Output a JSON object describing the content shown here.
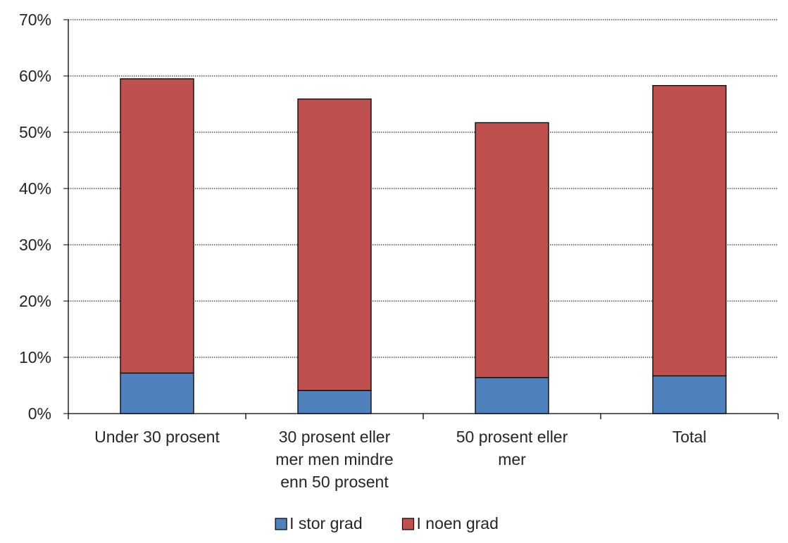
{
  "chart_data": {
    "type": "bar",
    "stacked": true,
    "title": "",
    "xlabel": "",
    "ylabel": "",
    "ylim": [
      0,
      70
    ],
    "yticks": [
      "0%",
      "10%",
      "20%",
      "30%",
      "40%",
      "50%",
      "60%",
      "70%"
    ],
    "y_unit": "%",
    "grid": true,
    "legend_position": "bottom",
    "categories": [
      [
        "Under 30 prosent"
      ],
      [
        "30 prosent eller",
        "mer men mindre",
        "enn 50 prosent"
      ],
      [
        "50 prosent eller",
        "mer"
      ],
      [
        "Total"
      ]
    ],
    "series": [
      {
        "name": "I stor grad",
        "color": "#4f81bd",
        "values": [
          7.2,
          4.1,
          6.4,
          6.7
        ]
      },
      {
        "name": "I noen grad",
        "color": "#c0504d",
        "values": [
          52.3,
          51.8,
          45.3,
          51.6
        ]
      }
    ]
  }
}
